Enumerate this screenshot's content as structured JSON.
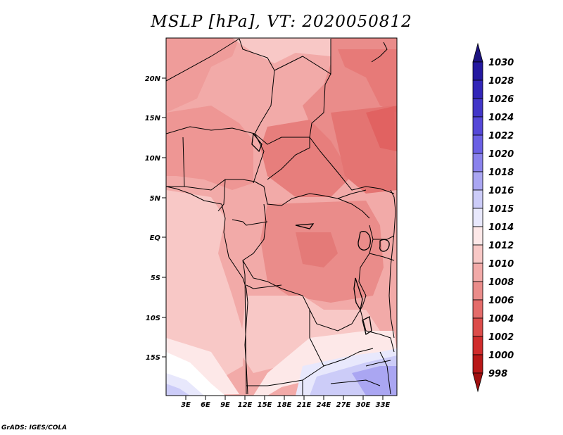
{
  "title": "MSLP [hPa], VT: 2020050812",
  "credit": "GrADS: IGES/COLA",
  "map": {
    "lat_labels": [
      "20N",
      "15N",
      "10N",
      "5N",
      "EQ",
      "5S",
      "10S",
      "15S"
    ],
    "lon_labels": [
      "3E",
      "6E",
      "9E",
      "12E",
      "15E",
      "18E",
      "21E",
      "24E",
      "27E",
      "30E",
      "33E"
    ]
  },
  "colorbar": {
    "levels": [
      "1030",
      "1028",
      "1026",
      "1024",
      "1022",
      "1020",
      "1018",
      "1016",
      "1015",
      "1014",
      "1012",
      "1010",
      "1008",
      "1006",
      "1004",
      "1002",
      "1000",
      "998"
    ],
    "colors": [
      "#1c1280",
      "#2418a0",
      "#3226b8",
      "#4236c8",
      "#5548d8",
      "#6b60e4",
      "#8a82ec",
      "#aaa6f2",
      "#ccccf8",
      "#e8e8fc",
      "#fde8e8",
      "#f8c8c6",
      "#f2aaa8",
      "#ea8c8a",
      "#e46c6a",
      "#dc4c4a",
      "#d02c2c",
      "#b81818",
      "#a01010"
    ]
  }
}
